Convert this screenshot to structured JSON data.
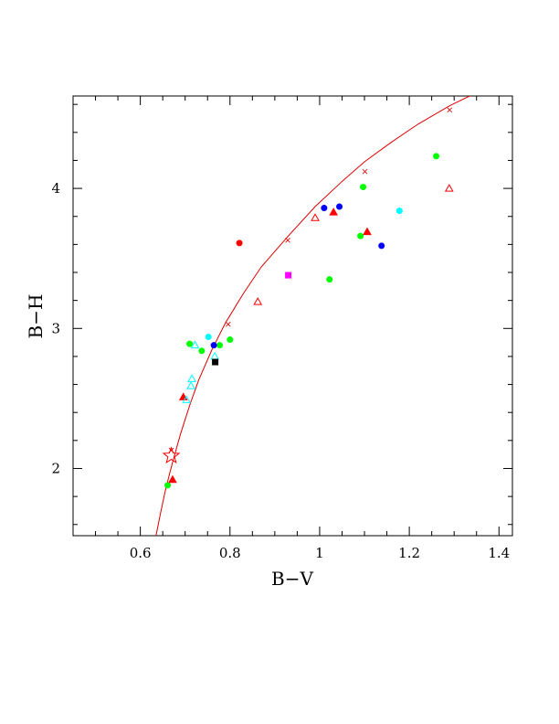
{
  "chart_data": {
    "type": "scatter",
    "title": "",
    "xlabel": "B−V",
    "ylabel": "B−H",
    "xlim": [
      0.45,
      1.43
    ],
    "ylim": [
      1.52,
      4.66
    ],
    "x_ticks": [
      0.6,
      0.8,
      1,
      1.2,
      1.4
    ],
    "x_tick_labels": [
      "0.6",
      "0.8",
      "1",
      "1.2",
      "1.4"
    ],
    "y_ticks": [
      2,
      3,
      4
    ],
    "y_tick_labels": [
      "2",
      "3",
      "4"
    ],
    "x_minor_step": 0.05,
    "y_minor_step": 0.2,
    "grid": false,
    "colors": {
      "red": "#ff0000",
      "green": "#00ff00",
      "blue": "#0000ff",
      "cyan": "#00ffff",
      "magenta": "#ff00ff",
      "black": "#000000",
      "curve": "#e00000"
    },
    "series": [
      {
        "color": "#ff0000",
        "marker": "circle-filled",
        "points": [
          [
            0.821,
            3.61
          ]
        ]
      },
      {
        "color": "#00ff00",
        "marker": "circle-filled",
        "points": [
          [
            0.71,
            2.89
          ],
          [
            0.737,
            2.84
          ],
          [
            0.777,
            2.88
          ],
          [
            0.8,
            2.92
          ],
          [
            1.022,
            3.35
          ],
          [
            1.091,
            3.66
          ],
          [
            1.097,
            4.01
          ],
          [
            1.26,
            4.23
          ],
          [
            0.661,
            1.88
          ]
        ]
      },
      {
        "color": "#0000ff",
        "marker": "circle-filled",
        "points": [
          [
            0.764,
            2.88
          ],
          [
            1.01,
            3.86
          ],
          [
            1.044,
            3.87
          ],
          [
            1.138,
            3.59
          ]
        ]
      },
      {
        "color": "#00ffff",
        "marker": "circle-filled",
        "points": [
          [
            0.752,
            2.94
          ],
          [
            1.178,
            3.84
          ]
        ]
      },
      {
        "color": "#ff0000",
        "marker": "triangle-filled",
        "points": [
          [
            0.696,
            2.51
          ],
          [
            0.672,
            1.92
          ],
          [
            1.031,
            3.83
          ],
          [
            1.106,
            3.69
          ]
        ]
      },
      {
        "color": "#ff0000",
        "marker": "triangle-open",
        "points": [
          [
            0.862,
            3.19
          ],
          [
            0.99,
            3.79
          ],
          [
            1.289,
            4.0
          ]
        ]
      },
      {
        "color": "#00ffff",
        "marker": "triangle-open",
        "points": [
          [
            0.715,
            2.64
          ],
          [
            0.713,
            2.59
          ],
          [
            0.722,
            2.88
          ],
          [
            0.703,
            2.49
          ],
          [
            0.766,
            2.8
          ]
        ]
      },
      {
        "color": "#ff00ff",
        "marker": "square-filled",
        "points": [
          [
            0.93,
            3.38
          ]
        ]
      },
      {
        "color": "#000000",
        "marker": "square-filled",
        "points": [
          [
            0.767,
            2.76
          ]
        ]
      },
      {
        "color": "#ff0000",
        "marker": "star-open",
        "points": [
          [
            0.669,
            2.09
          ]
        ]
      }
    ],
    "curve": {
      "color": "#e00000",
      "points": [
        [
          0.635,
          1.52
        ],
        [
          0.645,
          1.68
        ],
        [
          0.655,
          1.83
        ],
        [
          0.665,
          1.96
        ],
        [
          0.675,
          2.08
        ],
        [
          0.69,
          2.25
        ],
        [
          0.71,
          2.45
        ],
        [
          0.73,
          2.63
        ],
        [
          0.76,
          2.85
        ],
        [
          0.79,
          3.04
        ],
        [
          0.83,
          3.25
        ],
        [
          0.87,
          3.44
        ],
        [
          0.93,
          3.66
        ],
        [
          0.99,
          3.87
        ],
        [
          1.05,
          4.05
        ],
        [
          1.1,
          4.19
        ],
        [
          1.16,
          4.33
        ],
        [
          1.22,
          4.46
        ],
        [
          1.29,
          4.59
        ],
        [
          1.335,
          4.66
        ]
      ],
      "tick_marks": [
        [
          0.669,
          2.13
        ],
        [
          0.796,
          3.03
        ],
        [
          0.929,
          3.63
        ],
        [
          1.101,
          4.12
        ],
        [
          1.29,
          4.56
        ]
      ]
    }
  }
}
